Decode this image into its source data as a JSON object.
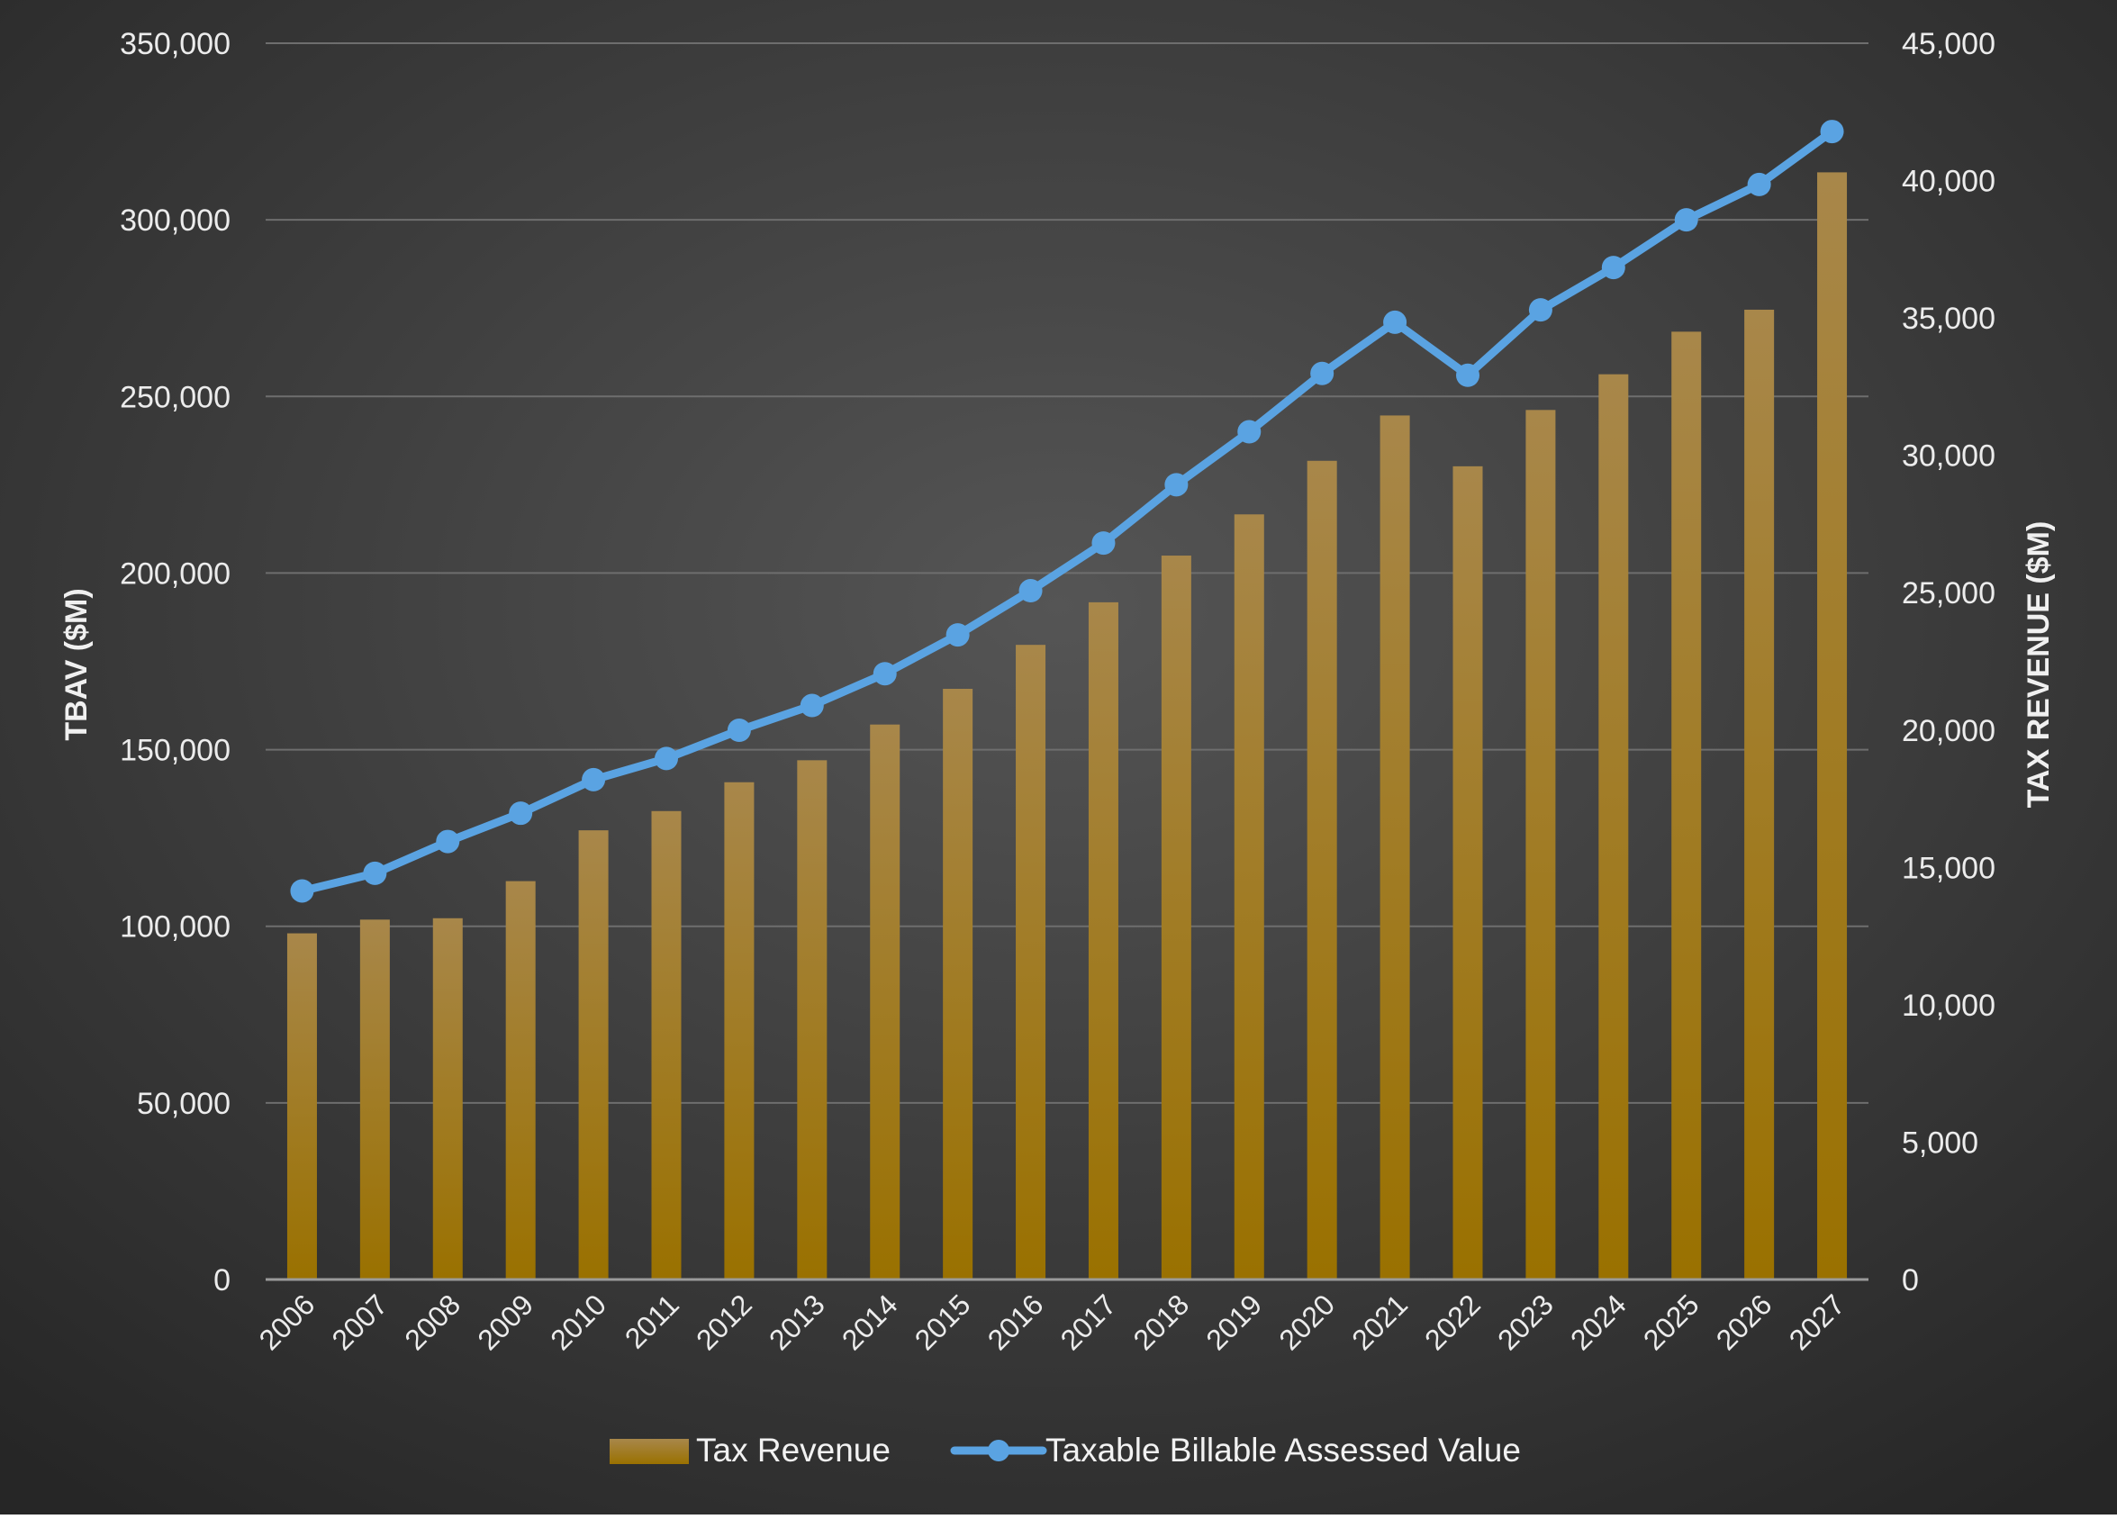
{
  "colors": {
    "background_light": "#555555",
    "background_dark": "#262626",
    "bar_top": "#a8874a",
    "bar_bottom": "#9a7100",
    "line": "#5aa3e2",
    "grid": "#6e6e6e",
    "axis_text": "#ececec"
  },
  "chart_data": {
    "type": "bar+line",
    "title": "",
    "categories": [
      "2006",
      "2007",
      "2008",
      "2009",
      "2010",
      "2011",
      "2012",
      "2013",
      "2014",
      "2015",
      "2016",
      "2017",
      "2018",
      "2019",
      "2020",
      "2021",
      "2022",
      "2023",
      "2024",
      "2025",
      "2026",
      "2027"
    ],
    "series": [
      {
        "name": "Tax Revenue",
        "type": "bar",
        "axis": "right",
        "values": [
          12600,
          13100,
          13150,
          14500,
          16350,
          17050,
          18100,
          18900,
          20200,
          21500,
          23100,
          24650,
          26350,
          27850,
          29800,
          31450,
          29600,
          31650,
          32950,
          34500,
          35300,
          40300
        ]
      },
      {
        "name": "Taxable Billable Assessed Value",
        "type": "line",
        "axis": "left",
        "values": [
          110000,
          115000,
          124000,
          132000,
          141500,
          147500,
          155500,
          162500,
          171500,
          182500,
          195000,
          208500,
          225000,
          240000,
          256500,
          271000,
          256000,
          274500,
          286500,
          300000,
          310000,
          325000
        ]
      }
    ],
    "y_left": {
      "label": "TBAV ($M)",
      "range": [
        0,
        350000
      ],
      "ticks": [
        "0",
        "50,000",
        "100,000",
        "150,000",
        "200,000",
        "250,000",
        "300,000",
        "350,000"
      ]
    },
    "y_right": {
      "label": "TAX REVENUE ($M)",
      "range": [
        0,
        45000
      ],
      "ticks": [
        "0",
        "5,000",
        "10,000",
        "15,000",
        "20,000",
        "25,000",
        "30,000",
        "35,000",
        "40,000",
        "45,000"
      ]
    },
    "legend": {
      "placement": "bottom-center",
      "entries": [
        "Tax Revenue",
        "Taxable Billable Assessed Value"
      ]
    },
    "grid": true
  }
}
